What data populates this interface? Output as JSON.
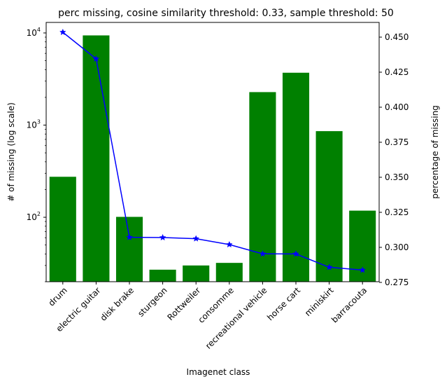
{
  "chart_data": {
    "type": "bar",
    "title": "perc missing, cosine similarity threshold: 0.33, sample threshold: 50",
    "xlabel": "Imagenet class",
    "ylabel_left": "# of missing (log scale)",
    "ylabel_right": "percentage of missing",
    "categories": [
      "drum",
      "electric guitar",
      "disk brake",
      "sturgeon",
      "Rottweiler",
      "consomme",
      "recreational vehicle",
      "horse cart",
      "miniskirt",
      "barracouta"
    ],
    "left_axis": {
      "scale": "log",
      "ylim": [
        20,
        13000
      ],
      "ticks": [
        {
          "value": 100,
          "base": "10",
          "exp": "2"
        },
        {
          "value": 1000,
          "base": "10",
          "exp": "3"
        },
        {
          "value": 10000,
          "base": "10",
          "exp": "4"
        }
      ]
    },
    "right_axis": {
      "scale": "linear",
      "ylim": [
        0.2755,
        0.4605
      ],
      "ticks": [
        "0.275",
        "0.300",
        "0.325",
        "0.350",
        "0.375",
        "0.400",
        "0.425",
        "0.450"
      ]
    },
    "series": [
      {
        "kind": "bar",
        "axis": "left",
        "color": "#008000",
        "values": [
          275,
          9400,
          101,
          27,
          30,
          32,
          2280,
          3700,
          860,
          118
        ]
      },
      {
        "kind": "line",
        "axis": "right",
        "color": "#0000ff",
        "marker": "star",
        "values": [
          0.4535,
          0.4345,
          0.3072,
          0.307,
          0.3062,
          0.302,
          0.2954,
          0.2953,
          0.2858,
          0.2838
        ]
      }
    ]
  }
}
